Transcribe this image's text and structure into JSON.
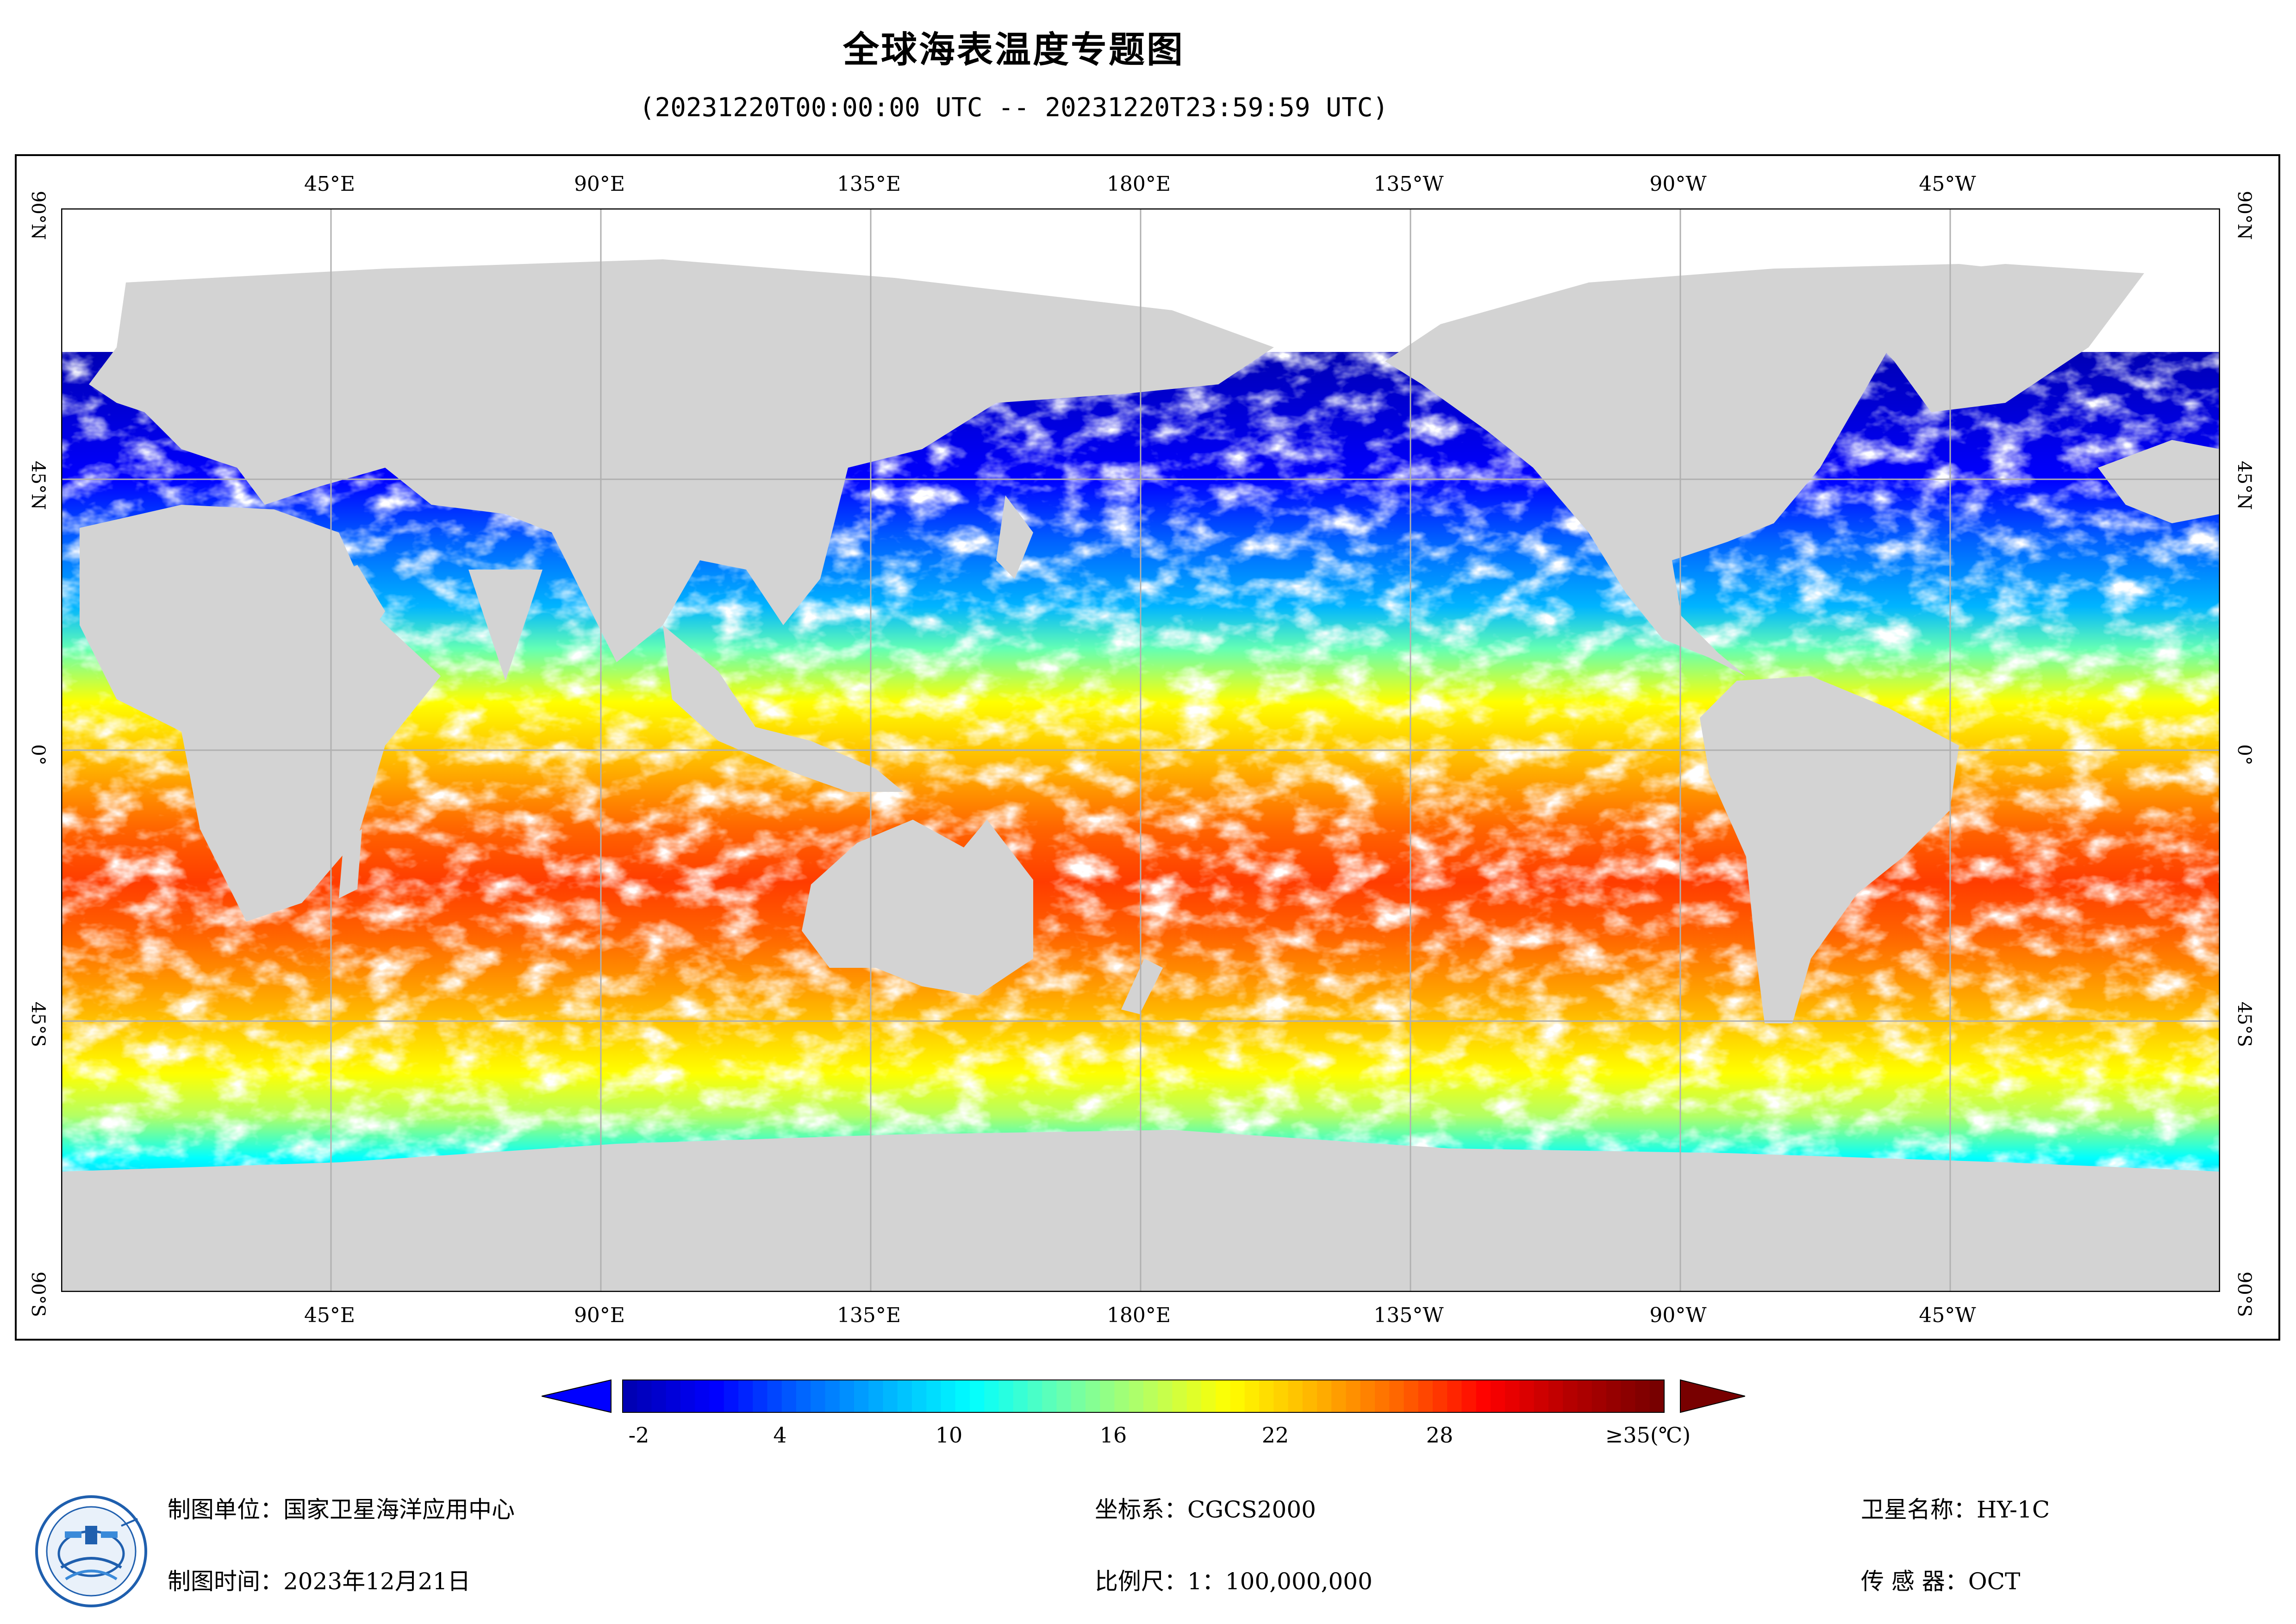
{
  "header": {
    "title": "全球海表温度专题图",
    "time_range": "(20231220T00:00:00 UTC -- 20231220T23:59:59 UTC)"
  },
  "map": {
    "top_lon_labels": [
      "45°E",
      "90°E",
      "135°E",
      "180°E",
      "135°W",
      "90°W",
      "45°W"
    ],
    "bottom_lon_labels": [
      "45°E",
      "90°E",
      "135°E",
      "180°E",
      "135°W",
      "90°W",
      "45°W"
    ],
    "lat_labels": [
      "90°N",
      "45°N",
      "0°",
      "45°S",
      "90°S"
    ],
    "colors": {
      "land": "#d3d3d3",
      "cloud_or_missing": "#ffffff",
      "grid": "#b0b0b0"
    }
  },
  "colorbar": {
    "tick_labels": [
      "-2",
      "4",
      "10",
      "16",
      "22",
      "28",
      "≥35(℃)"
    ],
    "min_c": -2,
    "max_c": 35,
    "colors": [
      "#0000b4",
      "#0000ff",
      "#0064ff",
      "#00b4ff",
      "#00ffff",
      "#64ffb4",
      "#b4ff64",
      "#ffff00",
      "#ffb400",
      "#ff6400",
      "#ff0000",
      "#b40000",
      "#780000"
    ]
  },
  "footer": {
    "producer": "制图单位：国家卫星海洋应用中心",
    "date": "制图时间：2023年12月21日",
    "crs": "坐标系：CGCS2000",
    "scale": "比例尺：1：100,000,000",
    "satellite": "卫星名称：HY-1C",
    "sensor": "传  感  器：OCT"
  }
}
